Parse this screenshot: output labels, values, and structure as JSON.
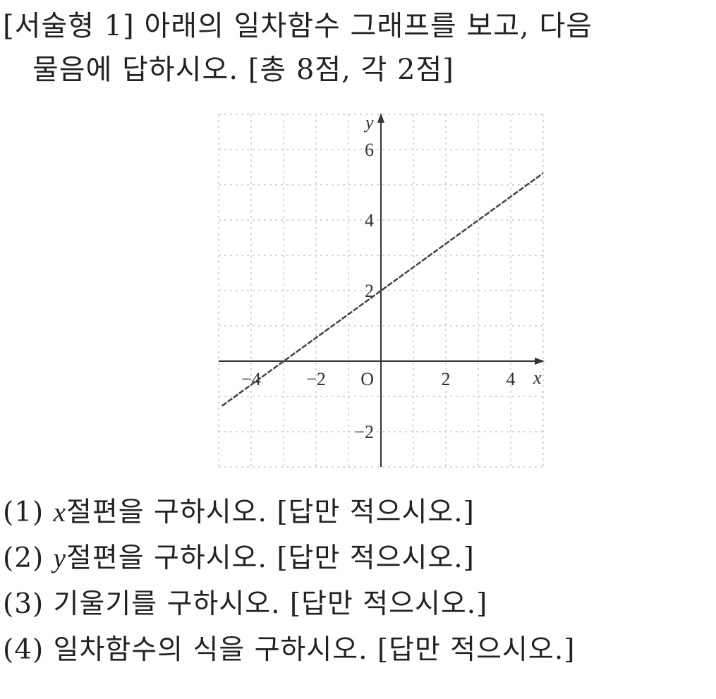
{
  "header": {
    "line1": "[서술형 1] 아래의 일차함수 그래프를 보고, 다음",
    "line2": "물음에 답하시오. [총 8점, 각 2점]"
  },
  "chart_data": {
    "type": "line",
    "xlabel": "x",
    "ylabel": "y",
    "xlim": [
      -5,
      5
    ],
    "ylim": [
      -3,
      7
    ],
    "grid": true,
    "x_ticks": [
      {
        "v": -4,
        "label": "−4"
      },
      {
        "v": -2,
        "label": "−2"
      },
      {
        "v": 2,
        "label": "2"
      },
      {
        "v": 4,
        "label": "4"
      }
    ],
    "y_ticks": [
      {
        "v": 6,
        "label": "6"
      },
      {
        "v": 4,
        "label": "4"
      },
      {
        "v": 2,
        "label": "2"
      },
      {
        "v": -2,
        "label": "−2"
      }
    ],
    "origin_label": "O",
    "series": [
      {
        "x": [
          -4.9,
          5
        ],
        "y": [
          -1.27,
          5.33
        ],
        "color": "#444444"
      }
    ]
  },
  "questions": [
    {
      "num": "(1)",
      "var": "x",
      "text": "절편을 구하시오.  [답만 적으시오.]"
    },
    {
      "num": "(2)",
      "var": "y",
      "text": "절편을 구하시오.  [답만 적으시오.]"
    },
    {
      "num": "(3)",
      "var": "",
      "text": "기울기를 구하시오.  [답만 적으시오.]"
    },
    {
      "num": "(4)",
      "var": "",
      "text": "일차함수의 식을 구하시오.  [답만 적으시오.]"
    }
  ]
}
